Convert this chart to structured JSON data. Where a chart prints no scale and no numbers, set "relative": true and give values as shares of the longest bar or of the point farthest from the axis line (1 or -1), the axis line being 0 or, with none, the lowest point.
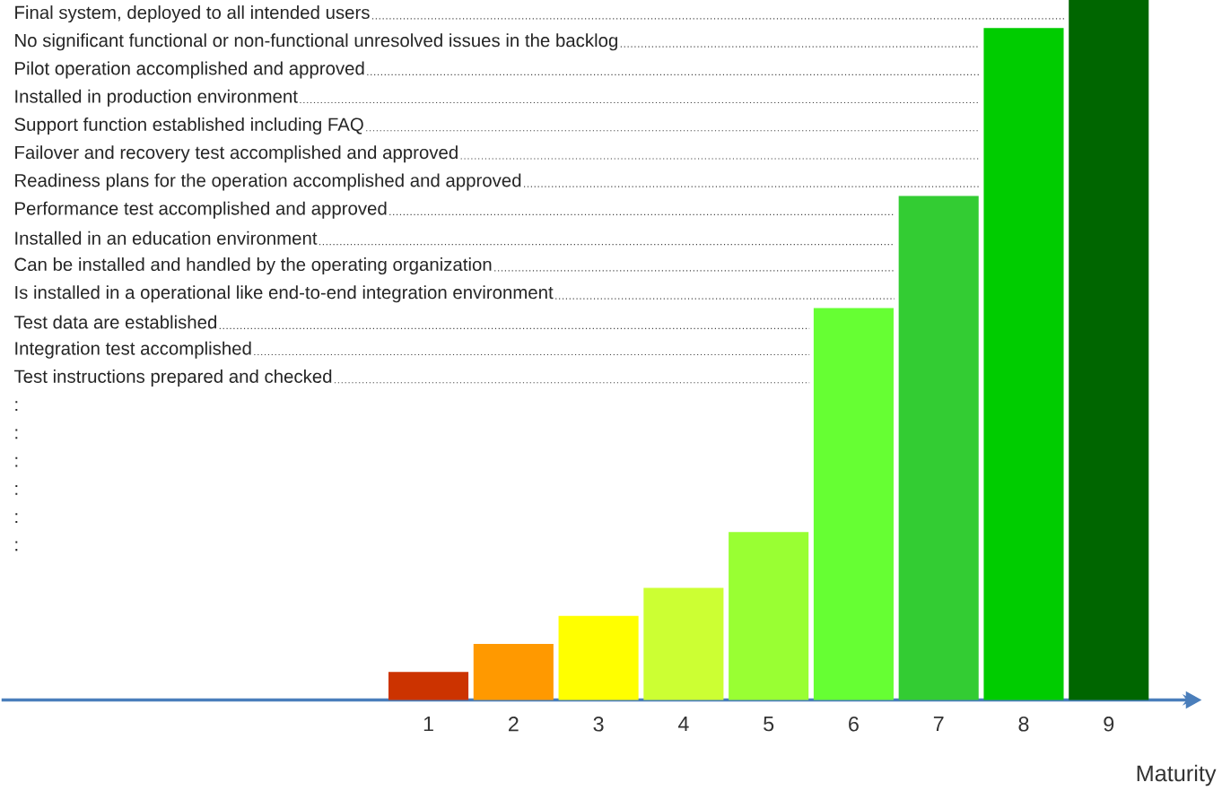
{
  "chart_data": {
    "type": "bar",
    "relative": true,
    "xlabel": "Maturity",
    "categories": [
      "1",
      "2",
      "3",
      "4",
      "5",
      "6",
      "7",
      "8",
      "9"
    ],
    "values": [
      0.04,
      0.08,
      0.12,
      0.16,
      0.24,
      0.56,
      0.72,
      0.96,
      1
    ],
    "colors": [
      "#cc3300",
      "#ff9900",
      "#ffff00",
      "#ccff33",
      "#99ff33",
      "#66ff33",
      "#33cc33",
      "#00cc00",
      "#006600"
    ],
    "annotations": [
      "Final system, deployed to all intended users",
      "No significant functional or non-functional unresolved issues in the backlog",
      "Pilot operation accomplished and approved",
      "Installed in production environment",
      "Support function established including FAQ",
      "Failover and recovery test accomplished and approved",
      "Readiness plans for the operation accomplished and approved",
      "Performance test accomplished and approved",
      "Installed in an education environment",
      "Can be installed and handled by the operating organization",
      "Is installed in a operational like end-to-end integration environment",
      "Test data are established",
      "Integration test accomplished",
      "Test instructions prepared and checked",
      ":",
      ":",
      ":",
      ":",
      ":",
      ":"
    ]
  }
}
